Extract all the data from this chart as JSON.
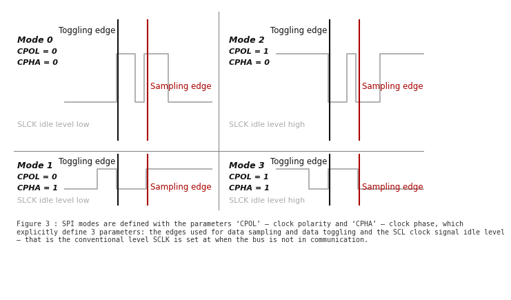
{
  "background_color": "#ffffff",
  "caption_line1": "Figure 3 : SPI modes are defined with the parameters ‘CPOL’ – clock polarity and ‘CPHA’ – clock phase, which",
  "caption_line2": "explicitly define 3 parameters: the edges used for data sampling and data toggling and the SCL clock signal idle level",
  "caption_line3": "– that is the conventional level SCLK is set at when the bus is not in communication.",
  "modes": [
    {
      "label": "Mode 0",
      "cpol": "CPOL = 0",
      "cpha": "CPHA = 0",
      "idle_label": "SLCK idle level low",
      "idle_level": 0,
      "waveform": "low_idle_mode0",
      "col": 0,
      "row": 0
    },
    {
      "label": "Mode 2",
      "cpol": "CPOL = 1",
      "cpha": "CPHA = 0",
      "idle_label": "SLCK idle level high",
      "idle_level": 1,
      "waveform": "high_idle_mode2",
      "col": 1,
      "row": 0
    },
    {
      "label": "Mode 1",
      "cpol": "CPOL = 0",
      "cpha": "CPHA = 1",
      "idle_label": "SLCK idle level low",
      "idle_level": 0,
      "waveform": "low_idle_mode1",
      "col": 0,
      "row": 1
    },
    {
      "label": "Mode 3",
      "cpol": "CPOL = 1",
      "cpha": "CPHA = 1",
      "idle_label": "SLCK idle level high",
      "idle_level": 1,
      "waveform": "high_idle_mode3",
      "col": 1,
      "row": 1
    }
  ],
  "signal_color": "#aaaaaa",
  "toggling_line_color": "#111111",
  "sampling_line_color": "#aa0000",
  "sampling_text_color": "#aa0000",
  "toggling_label": "Toggling edge",
  "sampling_label": "Sampling edge",
  "label_color": "#111111",
  "idle_label_color": "#aaaaaa",
  "mode_label_fontsize": 9,
  "param_fontsize": 8,
  "idle_fontsize": 8,
  "edge_label_fontsize": 8.5,
  "caption_fontsize": 7.2,
  "divider_color": "#888888",
  "signal_linewidth": 1.3,
  "edge_linewidth": 1.5
}
